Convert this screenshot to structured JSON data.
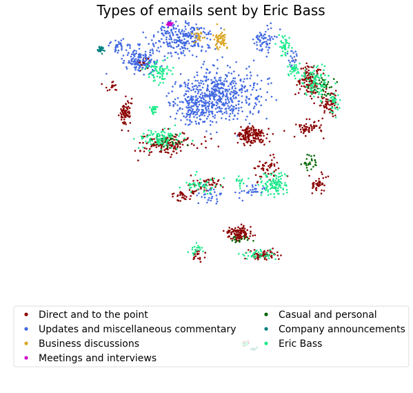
{
  "chart_data": {
    "type": "scatter",
    "title": "Types of emails sent by Eric Bass",
    "xlabel": "",
    "ylabel": "",
    "axes_visible": false,
    "grid": false,
    "legend_placement": "bottom",
    "legend_columns": 2,
    "series": [
      {
        "name": "Direct and to the point",
        "color": "#8b0000",
        "clusters": [
          {
            "center": [
              0.62,
              0.4
            ],
            "spread": [
              0.05,
              0.035
            ],
            "count": 160
          },
          {
            "center": [
              0.35,
              0.43
            ],
            "spread": [
              0.09,
              0.04
            ],
            "count": 140
          },
          {
            "center": [
              0.8,
              0.19
            ],
            "spread": [
              0.035,
              0.06
            ],
            "count": 120
          },
          {
            "center": [
              0.8,
              0.37
            ],
            "spread": [
              0.04,
              0.03
            ],
            "count": 60
          },
          {
            "center": [
              0.86,
              0.28
            ],
            "spread": [
              0.03,
              0.04
            ],
            "count": 60
          },
          {
            "center": [
              0.58,
              0.76
            ],
            "spread": [
              0.04,
              0.025
            ],
            "count": 110
          },
          {
            "center": [
              0.66,
              0.84
            ],
            "spread": [
              0.05,
              0.02
            ],
            "count": 70
          },
          {
            "center": [
              0.22,
              0.32
            ],
            "spread": [
              0.02,
              0.05
            ],
            "count": 70
          },
          {
            "center": [
              0.28,
              0.13
            ],
            "spread": [
              0.025,
              0.02
            ],
            "count": 30
          },
          {
            "center": [
              0.67,
              0.52
            ],
            "spread": [
              0.04,
              0.04
            ],
            "count": 50
          },
          {
            "center": [
              0.83,
              0.58
            ],
            "spread": [
              0.03,
              0.04
            ],
            "count": 40
          },
          {
            "center": [
              0.48,
              0.58
            ],
            "spread": [
              0.06,
              0.03
            ],
            "count": 50
          },
          {
            "center": [
              0.4,
              0.62
            ],
            "spread": [
              0.03,
              0.02
            ],
            "count": 30
          },
          {
            "center": [
              0.45,
              0.84
            ],
            "spread": [
              0.02,
              0.02
            ],
            "count": 20
          },
          {
            "center": [
              0.18,
              0.22
            ],
            "spread": [
              0.02,
              0.02
            ],
            "count": 15
          },
          {
            "center": [
              0.6,
              1.17
            ],
            "spread": [
              0.015,
              0.01
            ],
            "count": 15
          }
        ]
      },
      {
        "name": "Updates and miscellaneous commentary",
        "color": "#4169e1",
        "clusters": [
          {
            "center": [
              0.52,
              0.25
            ],
            "spread": [
              0.13,
              0.1
            ],
            "count": 520
          },
          {
            "center": [
              0.4,
              0.04
            ],
            "spread": [
              0.09,
              0.06
            ],
            "count": 260
          },
          {
            "center": [
              0.27,
              0.12
            ],
            "spread": [
              0.06,
              0.05
            ],
            "count": 150
          },
          {
            "center": [
              0.66,
              0.05
            ],
            "spread": [
              0.035,
              0.05
            ],
            "count": 70
          },
          {
            "center": [
              0.43,
              0.3
            ],
            "spread": [
              0.07,
              0.05
            ],
            "count": 110
          },
          {
            "center": [
              0.66,
              -0.21
            ],
            "spread": [
              0.02,
              0.015
            ],
            "count": 20
          },
          {
            "center": [
              0.2,
              0.07
            ],
            "spread": [
              0.03,
              0.03
            ],
            "count": 30
          },
          {
            "center": [
              0.62,
              0.6
            ],
            "spread": [
              0.05,
              0.03
            ],
            "count": 30
          },
          {
            "center": [
              0.48,
              0.62
            ],
            "spread": [
              0.04,
              0.03
            ],
            "count": 30
          },
          {
            "center": [
              0.75,
              0.12
            ],
            "spread": [
              0.02,
              0.03
            ],
            "count": 20
          }
        ]
      },
      {
        "name": "Business discussions",
        "color": "#daa520",
        "clusters": [
          {
            "center": [
              0.51,
              -0.07
            ],
            "spread": [
              0.025,
              0.04
            ],
            "count": 170
          },
          {
            "center": [
              0.52,
              0.04
            ],
            "spread": [
              0.02,
              0.03
            ],
            "count": 60
          },
          {
            "center": [
              0.45,
              0.03
            ],
            "spread": [
              0.02,
              0.02
            ],
            "count": 20
          }
        ]
      },
      {
        "name": "Meetings and interviews",
        "color": "#cc00cc",
        "clusters": [
          {
            "center": [
              0.36,
              -0.013
            ],
            "spread": [
              0.01,
              0.006
            ],
            "count": 18
          }
        ]
      },
      {
        "name": "Casual and personal",
        "color": "#006400",
        "clusters": [
          {
            "center": [
              0.66,
              -0.21
            ],
            "spread": [
              0.008,
              0.008
            ],
            "count": 10
          },
          {
            "center": [
              0.85,
              0.22
            ],
            "spread": [
              0.03,
              0.04
            ],
            "count": 40
          },
          {
            "center": [
              0.8,
              0.5
            ],
            "spread": [
              0.03,
              0.03
            ],
            "count": 25
          },
          {
            "center": [
              0.36,
              0.42
            ],
            "spread": [
              0.05,
              0.03
            ],
            "count": 30
          },
          {
            "center": [
              0.58,
              0.78
            ],
            "spread": [
              0.03,
              0.02
            ],
            "count": 15
          }
        ]
      },
      {
        "name": "Company announcements",
        "color": "#008080",
        "clusters": [
          {
            "center": [
              0.145,
              0.08
            ],
            "spread": [
              0.008,
              0.012
            ],
            "count": 28
          },
          {
            "center": [
              0.625,
              1.19
            ],
            "spread": [
              0.01,
              0.006
            ],
            "count": 12
          }
        ]
      },
      {
        "name": "Eric Bass",
        "color": "#1de98b",
        "clusters": [
          {
            "center": [
              0.66,
              -0.19
            ],
            "spread": [
              0.02,
              0.012
            ],
            "count": 45
          },
          {
            "center": [
              0.69,
              0.58
            ],
            "spread": [
              0.04,
              0.04
            ],
            "count": 110
          },
          {
            "center": [
              0.82,
              0.2
            ],
            "spread": [
              0.05,
              0.06
            ],
            "count": 90
          },
          {
            "center": [
              0.33,
              0.41
            ],
            "spread": [
              0.08,
              0.04
            ],
            "count": 90
          },
          {
            "center": [
              0.33,
              0.16
            ],
            "spread": [
              0.04,
              0.04
            ],
            "count": 70
          },
          {
            "center": [
              0.46,
              0.58
            ],
            "spread": [
              0.05,
              0.03
            ],
            "count": 50
          },
          {
            "center": [
              0.72,
              0.07
            ],
            "spread": [
              0.02,
              0.04
            ],
            "count": 40
          },
          {
            "center": [
              0.88,
              0.28
            ],
            "spread": [
              0.02,
              0.04
            ],
            "count": 35
          },
          {
            "center": [
              0.64,
              0.84
            ],
            "spread": [
              0.05,
              0.02
            ],
            "count": 40
          },
          {
            "center": [
              0.75,
              0.15
            ],
            "spread": [
              0.02,
              0.03
            ],
            "count": 30
          },
          {
            "center": [
              0.31,
              0.3
            ],
            "spread": [
              0.015,
              0.015
            ],
            "count": 20
          },
          {
            "center": [
              0.45,
              0.82
            ],
            "spread": [
              0.015,
              0.02
            ],
            "count": 20
          },
          {
            "center": [
              0.6,
              1.17
            ],
            "spread": [
              0.015,
              0.008
            ],
            "count": 12
          },
          {
            "center": [
              0.58,
              0.57
            ],
            "spread": [
              0.02,
              0.015
            ],
            "count": 15
          }
        ]
      }
    ]
  }
}
